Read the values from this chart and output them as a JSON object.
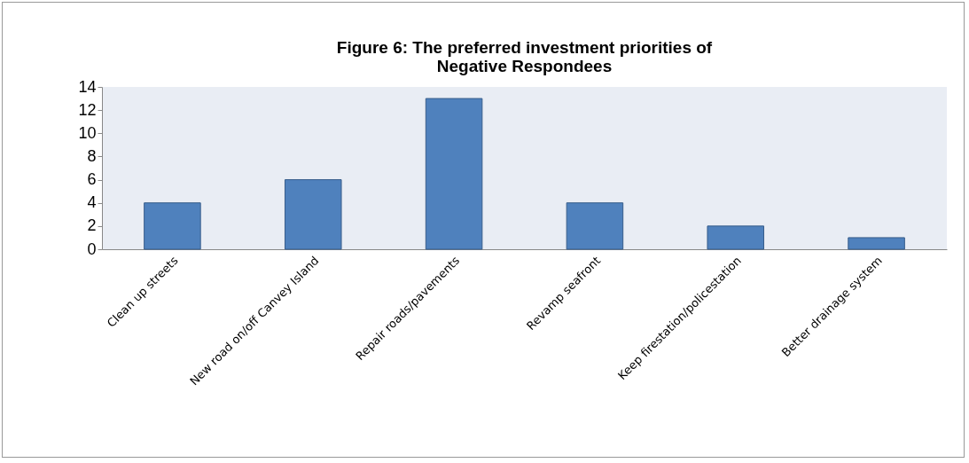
{
  "chart_data": {
    "type": "bar",
    "title": "Figure 6: The preferred investment priorities of Negative Respondees",
    "categories": [
      "Clean up streets",
      "New road on/off Canvey Island",
      "Repair roads/pavements",
      "Revamp seafront",
      "Keep firestation/policestation",
      "Better drainage system"
    ],
    "values": [
      4,
      6,
      13,
      4,
      2,
      1
    ],
    "color": "#4f81bd",
    "ylim": [
      0,
      14
    ],
    "yticks": [
      0,
      2,
      4,
      6,
      8,
      10,
      12,
      14
    ],
    "grid": false
  }
}
